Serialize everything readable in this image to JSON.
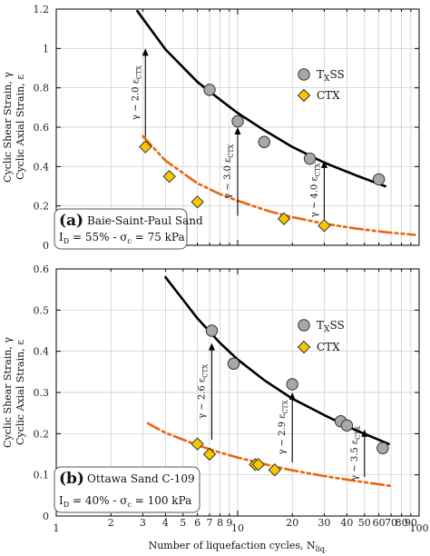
{
  "chart_data": [
    {
      "type": "scatter",
      "panel": "a",
      "x_scale": "log",
      "xlim": [
        1,
        100
      ],
      "ylim": [
        0,
        1.2
      ],
      "yticks": [
        0,
        0.2,
        0.4,
        0.6,
        0.8,
        1,
        1.2
      ],
      "ytick_labels": [
        "0",
        "0.2",
        "0.4",
        "0.6",
        "0.8",
        "1",
        "1.2"
      ],
      "ylabel_line1": "Cyclic Shear Strain, γ",
      "ylabel_line2": "Cyclic Axial Strain, ε",
      "box_letter": "(a)",
      "box_line1": "Baie-Saint-Paul Sand",
      "box_line2": "I",
      "box_line2_sub": "D",
      "box_line2_rest": " = 55% - σ",
      "box_line2_sub2": "c",
      "box_line2_end": " = 75 kPa",
      "series": [
        {
          "name": "TXSS",
          "legend_main": "T",
          "legend_sub": "X",
          "legend_rest": "SS",
          "x": [
            7,
            10,
            14,
            25,
            60
          ],
          "y": [
            0.79,
            0.63,
            0.525,
            0.44,
            0.335
          ]
        },
        {
          "name": "CTX",
          "legend_main": "CTX",
          "x": [
            3.1,
            4.2,
            6,
            18,
            30
          ],
          "y": [
            0.5,
            0.35,
            0.22,
            0.135,
            0.1
          ]
        }
      ],
      "fit_txss": {
        "x": [
          2.8,
          4,
          6,
          8,
          10,
          14,
          20,
          30,
          45,
          65
        ],
        "y": [
          1.19,
          0.995,
          0.83,
          0.74,
          0.672,
          0.585,
          0.5,
          0.42,
          0.355,
          0.3
        ]
      },
      "fit_ctx": {
        "x": [
          3,
          4,
          6,
          8,
          10,
          15,
          20,
          30,
          45,
          65,
          95
        ],
        "y": [
          0.555,
          0.43,
          0.315,
          0.26,
          0.226,
          0.172,
          0.143,
          0.11,
          0.085,
          0.067,
          0.053
        ]
      },
      "arrows": [
        {
          "x": 3.1,
          "y_from": 0.55,
          "y_to": 1.0,
          "label": "γ ~ 2.0 ε",
          "sub": "CTX"
        },
        {
          "x": 10,
          "y_from": 0.15,
          "y_to": 0.6,
          "label": "γ ~ 3.0 ε",
          "sub": "CTX"
        },
        {
          "x": 30,
          "y_from": 0.13,
          "y_to": 0.43,
          "label": "γ ~ 4.0 ε",
          "sub": "CTX"
        }
      ]
    },
    {
      "type": "scatter",
      "panel": "b",
      "x_scale": "log",
      "xlim": [
        1,
        100
      ],
      "ylim": [
        0,
        0.6
      ],
      "yticks": [
        0,
        0.1,
        0.2,
        0.3,
        0.4,
        0.5,
        0.6
      ],
      "ytick_labels": [
        "0",
        "0.1",
        "0.2",
        "0.3",
        "0.4",
        "0.5",
        "0.6"
      ],
      "xticks_major": [
        1,
        10,
        100
      ],
      "xticks_minor": [
        2,
        3,
        4,
        5,
        6,
        7,
        8,
        9,
        20,
        30,
        40,
        50,
        60,
        70,
        80,
        90
      ],
      "xtick_labels_major": [
        "1",
        "10",
        "100"
      ],
      "xtick_labels_minor": [
        "2",
        "3",
        "4",
        "5",
        "6",
        "7",
        "8",
        "9",
        "20",
        "30",
        "40",
        "50",
        "60",
        "70",
        "80",
        "90"
      ],
      "xlabel_main": "Number of liquefaction cycles, N",
      "xlabel_sub": "liq.",
      "ylabel_line1": "Cyclic Shear Strain, γ",
      "ylabel_line2": "Cyclic Axial Strain, ε",
      "box_letter": "(b)",
      "box_line1": "Ottawa Sand C-109",
      "box_line2": "I",
      "box_line2_sub": "D",
      "box_line2_rest": " = 40% - σ",
      "box_line2_sub2": "c",
      "box_line2_end": " = 100 kPa",
      "series": [
        {
          "name": "TXSS",
          "legend_main": "T",
          "legend_sub": "X",
          "legend_rest": "SS",
          "x": [
            7.2,
            9.5,
            20,
            37,
            40,
            63
          ],
          "y": [
            0.45,
            0.37,
            0.32,
            0.23,
            0.22,
            0.165
          ]
        },
        {
          "name": "CTX",
          "legend_main": "CTX",
          "x": [
            6,
            7,
            12.5,
            16,
            13
          ],
          "y": [
            0.175,
            0.15,
            0.125,
            0.112,
            0.125
          ]
        }
      ],
      "fit_txss": {
        "x": [
          4,
          5,
          6,
          8,
          10,
          14,
          20,
          30,
          45,
          68
        ],
        "y": [
          0.58,
          0.525,
          0.48,
          0.42,
          0.38,
          0.33,
          0.285,
          0.245,
          0.208,
          0.175
        ]
      },
      "fit_ctx": {
        "x": [
          3.2,
          4,
          6,
          8,
          10,
          15,
          20,
          30,
          45,
          70
        ],
        "y": [
          0.225,
          0.202,
          0.172,
          0.154,
          0.142,
          0.123,
          0.111,
          0.097,
          0.085,
          0.073
        ]
      },
      "arrows": [
        {
          "x": 7.2,
          "y_from": 0.185,
          "y_to": 0.42,
          "label": "γ ~ 2.6 ε",
          "sub": "CTX"
        },
        {
          "x": 20,
          "y_from": 0.13,
          "y_to": 0.3,
          "label": "γ ~ 2.9 ε",
          "sub": "CTX"
        },
        {
          "x": 50,
          "y_from": 0.095,
          "y_to": 0.21,
          "label": "γ ~ 3.5 ε",
          "sub": "CTX"
        }
      ]
    }
  ],
  "colors": {
    "txss_marker": "#a8a8a8",
    "ctx_marker": "#f7c800",
    "txss_fit": "#000000",
    "ctx_fit": "#e8650f"
  }
}
